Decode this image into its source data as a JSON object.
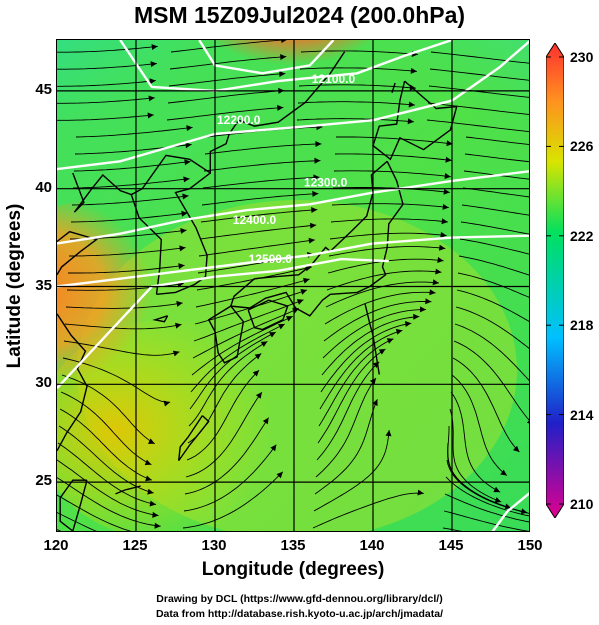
{
  "title": "MSM 15Z09Jul2024 (200.0hPa)",
  "x_axis": {
    "label": "Longitude (degrees)",
    "range": [
      120,
      150
    ],
    "ticks": [
      "120",
      "125",
      "130",
      "135",
      "140",
      "145",
      "150"
    ]
  },
  "y_axis": {
    "label": "Latitude  (degrees)",
    "range": [
      22.4,
      47.6
    ],
    "ticks": [
      "25",
      "30",
      "35",
      "40",
      "45"
    ]
  },
  "colorbar": {
    "range": [
      210,
      230
    ],
    "ticks": [
      "210",
      "214",
      "218",
      "222",
      "226",
      "230"
    ],
    "colors": [
      "#e0008f",
      "#2020c8",
      "#00c0ff",
      "#00e060",
      "#d8e400",
      "#ff9020",
      "#ff3030"
    ]
  },
  "contours": {
    "labels": [
      "12200.0",
      "12300.0",
      "12400.0",
      "12500.0",
      "12100.0"
    ],
    "color": "#ffffff"
  },
  "credits": [
    "Drawing by DCL (https://www.gfd-dennou.org/library/dcl/)",
    "Data from http://database.rish.kyoto-u.ac.jp/arch/jmadata/"
  ]
}
